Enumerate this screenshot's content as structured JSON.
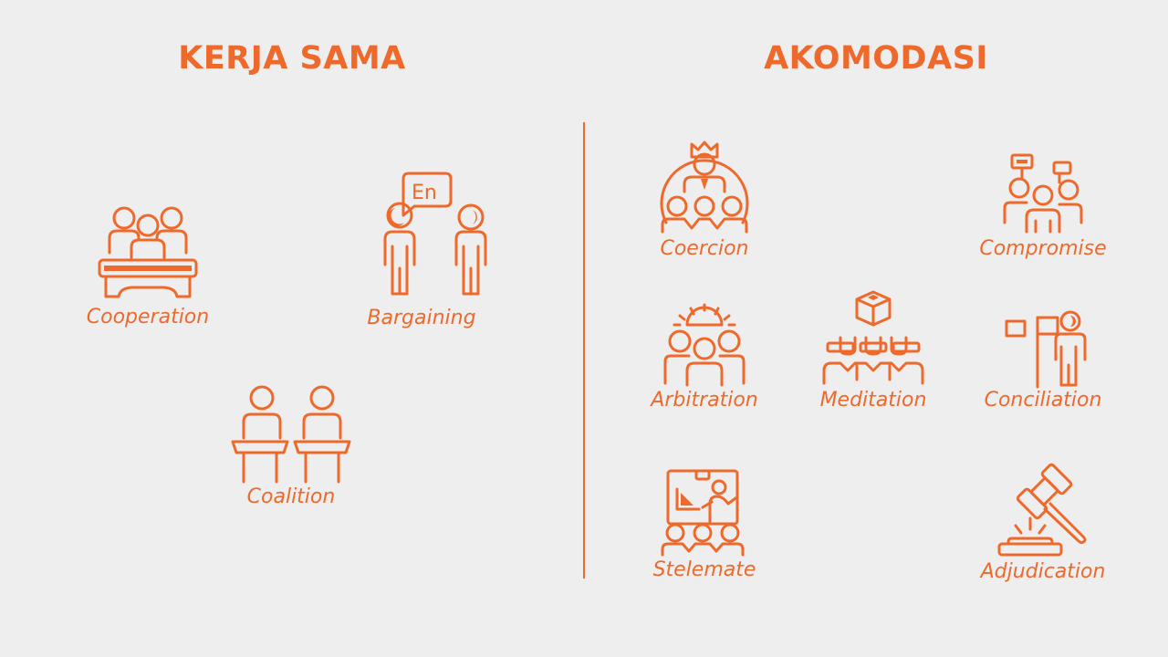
{
  "headings": {
    "kerja_sama": "KERJA SAMA",
    "akomodasi": "AKOMODASI"
  },
  "kerja_sama": {
    "cooperation": "Cooperation",
    "bargaining": "Bargaining",
    "coalition": "Coalition",
    "bargaining_bubble": "En"
  },
  "akomodasi": {
    "coercion": "Coercion",
    "compromise": "Compromise",
    "arbitration": "Arbitration",
    "meditation": "Meditation",
    "conciliation": "Conciliation",
    "stelemate": "Stelemate",
    "adjudication": "Adjudication"
  },
  "colors": {
    "accent": "#ee6a2c",
    "background": "#eeeeee"
  }
}
